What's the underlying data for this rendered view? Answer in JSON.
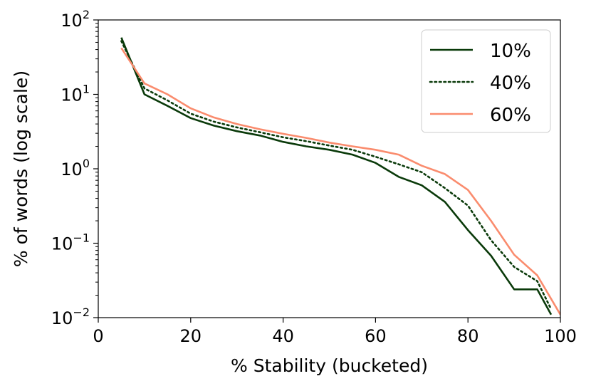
{
  "chart_data": {
    "type": "line",
    "xlabel": "% Stability (bucketed)",
    "ylabel": "% of words (log scale)",
    "yscale": "log",
    "xlim": [
      0,
      100
    ],
    "ylim": [
      0.01,
      100
    ],
    "x_ticks": [
      0,
      20,
      40,
      60,
      80,
      100
    ],
    "y_ticks": [
      {
        "value": 0.01,
        "base": "10",
        "exp": "−2"
      },
      {
        "value": 0.1,
        "base": "10",
        "exp": "−1"
      },
      {
        "value": 1,
        "base": "10",
        "exp": "0"
      },
      {
        "value": 10,
        "base": "10",
        "exp": "1"
      },
      {
        "value": 100,
        "base": "10",
        "exp": "2"
      }
    ],
    "legend_position": "top-right",
    "series": [
      {
        "name": "10%",
        "color": "#0a3a0a",
        "style": "solid",
        "x": [
          5,
          10,
          15,
          20,
          25,
          30,
          35,
          40,
          45,
          50,
          55,
          60,
          65,
          70,
          75,
          80,
          85,
          90,
          95,
          98
        ],
        "y": [
          58,
          10,
          7,
          4.8,
          3.8,
          3.2,
          2.8,
          2.3,
          2.0,
          1.8,
          1.55,
          1.2,
          0.78,
          0.6,
          0.36,
          0.15,
          0.068,
          0.024,
          0.024,
          0.011
        ]
      },
      {
        "name": "40%",
        "color": "#0a3a0a",
        "style": "dotted",
        "x": [
          5,
          10,
          15,
          20,
          25,
          30,
          35,
          40,
          45,
          50,
          55,
          60,
          65,
          70,
          75,
          80,
          85,
          90,
          95,
          98
        ],
        "y": [
          52,
          12,
          8.3,
          5.5,
          4.3,
          3.6,
          3.1,
          2.65,
          2.35,
          2.05,
          1.8,
          1.45,
          1.15,
          0.9,
          0.55,
          0.32,
          0.11,
          0.048,
          0.031,
          0.013
        ]
      },
      {
        "name": "60%",
        "color": "#fa8c6e",
        "style": "solid",
        "x": [
          5,
          10,
          15,
          20,
          25,
          30,
          35,
          40,
          45,
          50,
          55,
          60,
          65,
          70,
          75,
          80,
          85,
          90,
          95,
          100
        ],
        "y": [
          42,
          14,
          10,
          6.5,
          4.9,
          4.0,
          3.4,
          2.95,
          2.6,
          2.25,
          2.0,
          1.8,
          1.55,
          1.1,
          0.85,
          0.52,
          0.2,
          0.07,
          0.037,
          0.011
        ]
      }
    ]
  }
}
